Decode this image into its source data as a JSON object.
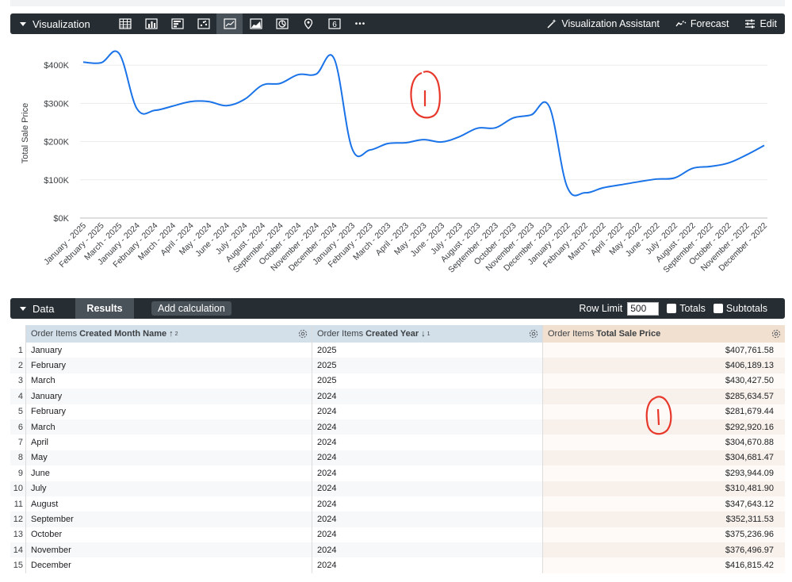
{
  "visualization": {
    "title": "Visualization",
    "icons": [
      "table-icon",
      "bar-chart-icon",
      "column-chart-icon",
      "scatter-icon",
      "line-chart-icon",
      "area-chart-icon",
      "pie-chart-icon",
      "map-pin-icon",
      "single-value-icon",
      "more-icon"
    ],
    "single_value_glyph": "6",
    "more_glyph": "•••",
    "assistant_label": "Visualization Assistant",
    "forecast_label": "Forecast",
    "edit_label": "Edit"
  },
  "chart_data": {
    "type": "line",
    "ylabel": "Total Sale Price",
    "ylim": [
      0,
      450000
    ],
    "yticks": [
      0,
      100000,
      200000,
      300000,
      400000
    ],
    "ytick_labels": [
      "$0K",
      "$100K",
      "$200K",
      "$300K",
      "$400K"
    ],
    "line_color": "#1a73e8",
    "categories": [
      "January - 2025",
      "February - 2025",
      "March - 2025",
      "January - 2024",
      "February - 2024",
      "March - 2024",
      "April - 2024",
      "May - 2024",
      "June - 2024",
      "July - 2024",
      "August - 2024",
      "September - 2024",
      "October - 2024",
      "November - 2024",
      "December - 2024",
      "January - 2023",
      "February - 2023",
      "March - 2023",
      "April - 2023",
      "May - 2023",
      "June - 2023",
      "July - 2023",
      "August - 2023",
      "September - 2023",
      "October - 2023",
      "November - 2023",
      "December - 2023",
      "January - 2022",
      "February - 2022",
      "March - 2022",
      "April - 2022",
      "May - 2022",
      "June - 2022",
      "July - 2022",
      "August - 2022",
      "September - 2022",
      "October - 2022",
      "November - 2022",
      "December - 2022"
    ],
    "values": [
      407761.58,
      406189.13,
      430427.5,
      285634.57,
      281679.44,
      292920.16,
      304670.88,
      304681.47,
      293944.09,
      310481.9,
      347643.12,
      352311.53,
      375236.96,
      376496.97,
      416815.42,
      182000,
      178000,
      195000,
      197000,
      205000,
      199000,
      213000,
      235000,
      236000,
      262000,
      270000,
      292000,
      82000,
      66000,
      79000,
      87000,
      95000,
      102000,
      105000,
      130000,
      135000,
      144000,
      165000,
      190000
    ]
  },
  "data_panel": {
    "title": "Data",
    "results_tab": "Results",
    "add_calc_label": "Add calculation",
    "row_limit_label": "Row Limit",
    "row_limit_value": "500",
    "totals_label": "Totals",
    "subtotals_label": "Subtotals"
  },
  "table": {
    "columns": [
      {
        "prefix": "Order Items",
        "name": "Created Month Name",
        "sort": "↑",
        "order": "2"
      },
      {
        "prefix": "Order Items",
        "name": "Created Year",
        "sort": "↓",
        "order": "1"
      },
      {
        "prefix": "Order Items",
        "name": "Total Sale Price",
        "sort": "",
        "order": ""
      }
    ],
    "rows": [
      {
        "n": "1",
        "month": "January",
        "year": "2025",
        "price": "$407,761.58"
      },
      {
        "n": "2",
        "month": "February",
        "year": "2025",
        "price": "$406,189.13"
      },
      {
        "n": "3",
        "month": "March",
        "year": "2025",
        "price": "$430,427.50"
      },
      {
        "n": "4",
        "month": "January",
        "year": "2024",
        "price": "$285,634.57"
      },
      {
        "n": "5",
        "month": "February",
        "year": "2024",
        "price": "$281,679.44"
      },
      {
        "n": "6",
        "month": "March",
        "year": "2024",
        "price": "$292,920.16"
      },
      {
        "n": "7",
        "month": "April",
        "year": "2024",
        "price": "$304,670.88"
      },
      {
        "n": "8",
        "month": "May",
        "year": "2024",
        "price": "$304,681.47"
      },
      {
        "n": "9",
        "month": "June",
        "year": "2024",
        "price": "$293,944.09"
      },
      {
        "n": "10",
        "month": "July",
        "year": "2024",
        "price": "$310,481.90"
      },
      {
        "n": "11",
        "month": "August",
        "year": "2024",
        "price": "$347,643.12"
      },
      {
        "n": "12",
        "month": "September",
        "year": "2024",
        "price": "$352,311.53"
      },
      {
        "n": "13",
        "month": "October",
        "year": "2024",
        "price": "$375,236.96"
      },
      {
        "n": "14",
        "month": "November",
        "year": "2024",
        "price": "$376,496.97"
      },
      {
        "n": "15",
        "month": "December",
        "year": "2024",
        "price": "$416,815.42"
      }
    ]
  },
  "annotations": {
    "color": "#e8382b",
    "mark_text": "1"
  }
}
